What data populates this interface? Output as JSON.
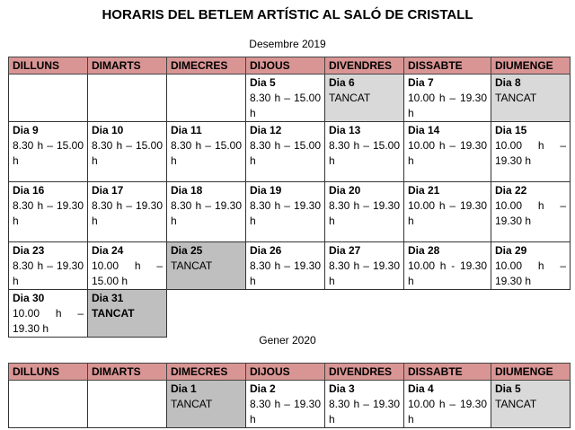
{
  "title": "HORARIS DEL BETLEM ARTÍSTIC AL SALÓ DE CRISTALL",
  "weekdays": [
    "DILLUNS",
    "DIMARTS",
    "DIMECRES",
    "DIJOUS",
    "DIVENDRES",
    "DISSABTE",
    "DIUMENGE"
  ],
  "colors": {
    "header": "#d99594",
    "closed_light": "#d9d9d9",
    "closed_dark": "#bfbfbf"
  },
  "months": [
    {
      "name": "Desembre 2019",
      "rows": [
        [
          null,
          null,
          null,
          {
            "day": "Dia 5",
            "time": "8.30 h – 15.00 h"
          },
          {
            "day": "Dia 6",
            "time": "TANCAT",
            "shade": "light"
          },
          {
            "day": "Dia 7",
            "time": "10.00 h – 19.30 h"
          },
          {
            "day": "Dia 8",
            "time": "TANCAT",
            "shade": "light"
          }
        ],
        [
          {
            "day": "Dia 9",
            "time": "8.30 h – 15.00 h"
          },
          {
            "day": "Dia 10",
            "time": "8.30 h – 15.00 h"
          },
          {
            "day": "Dia 11",
            "time": "8.30 h – 15.00 h"
          },
          {
            "day": "Dia 12",
            "time": "8.30 h – 15.00 h"
          },
          {
            "day": "Dia 13",
            "time": "8.30 h – 15.00 h"
          },
          {
            "day": "Dia 14",
            "time": "10.00 h – 19.30 h"
          },
          {
            "day": "Dia 15",
            "time": "10.00 h – 19.30 h"
          }
        ],
        [
          {
            "day": "Dia 16",
            "time": "8.30 h – 19.30 h"
          },
          {
            "day": "Dia 17",
            "time": "8.30 h – 19.30 h"
          },
          {
            "day": "Dia 18",
            "time": "8.30 h – 19.30 h"
          },
          {
            "day": "Dia 19",
            "time": "8.30 h – 19.30 h"
          },
          {
            "day": "Dia 20",
            "time": "8.30 h – 19.30 h"
          },
          {
            "day": "Dia 21",
            "time": "10.00 h – 19.30 h"
          },
          {
            "day": "Dia 22",
            "time": "10.00 h – 19.30 h"
          }
        ],
        [
          {
            "day": "Dia 23",
            "time": "8.30 h – 19.30 h"
          },
          {
            "day": "Dia 24",
            "time": "10.00 h – 15.00 h"
          },
          {
            "day": "Dia 25",
            "time": "TANCAT",
            "shade": "dark"
          },
          {
            "day": "Dia 26",
            "time": "8.30 h – 19.30 h"
          },
          {
            "day": "Dia 27",
            "time": "8.30 h – 19.30 h"
          },
          {
            "day": "Dia 28",
            "time": "10.00 h - 19.30 h"
          },
          {
            "day": "Dia 29",
            "time": "10.00 h – 19.30 h"
          }
        ],
        [
          {
            "day": "Dia 30",
            "time": "10.00 h – 19.30 h"
          },
          {
            "day": "Dia 31",
            "time": "TANCAT",
            "shade": "dark",
            "bold": true
          }
        ]
      ]
    },
    {
      "name": "Gener 2020",
      "rows": [
        [
          null,
          null,
          {
            "day": "Dia 1",
            "time": "TANCAT",
            "shade": "dark"
          },
          {
            "day": "Dia 2",
            "time": "8.30 h – 19.30 h"
          },
          {
            "day": "Dia 3",
            "time": "8.30 h – 19.30 h"
          },
          {
            "day": "Dia 4",
            "time": "10.00 h – 19.30 h"
          },
          {
            "day": "Dia 5",
            "time": "TANCAT",
            "shade": "light"
          }
        ]
      ]
    }
  ]
}
